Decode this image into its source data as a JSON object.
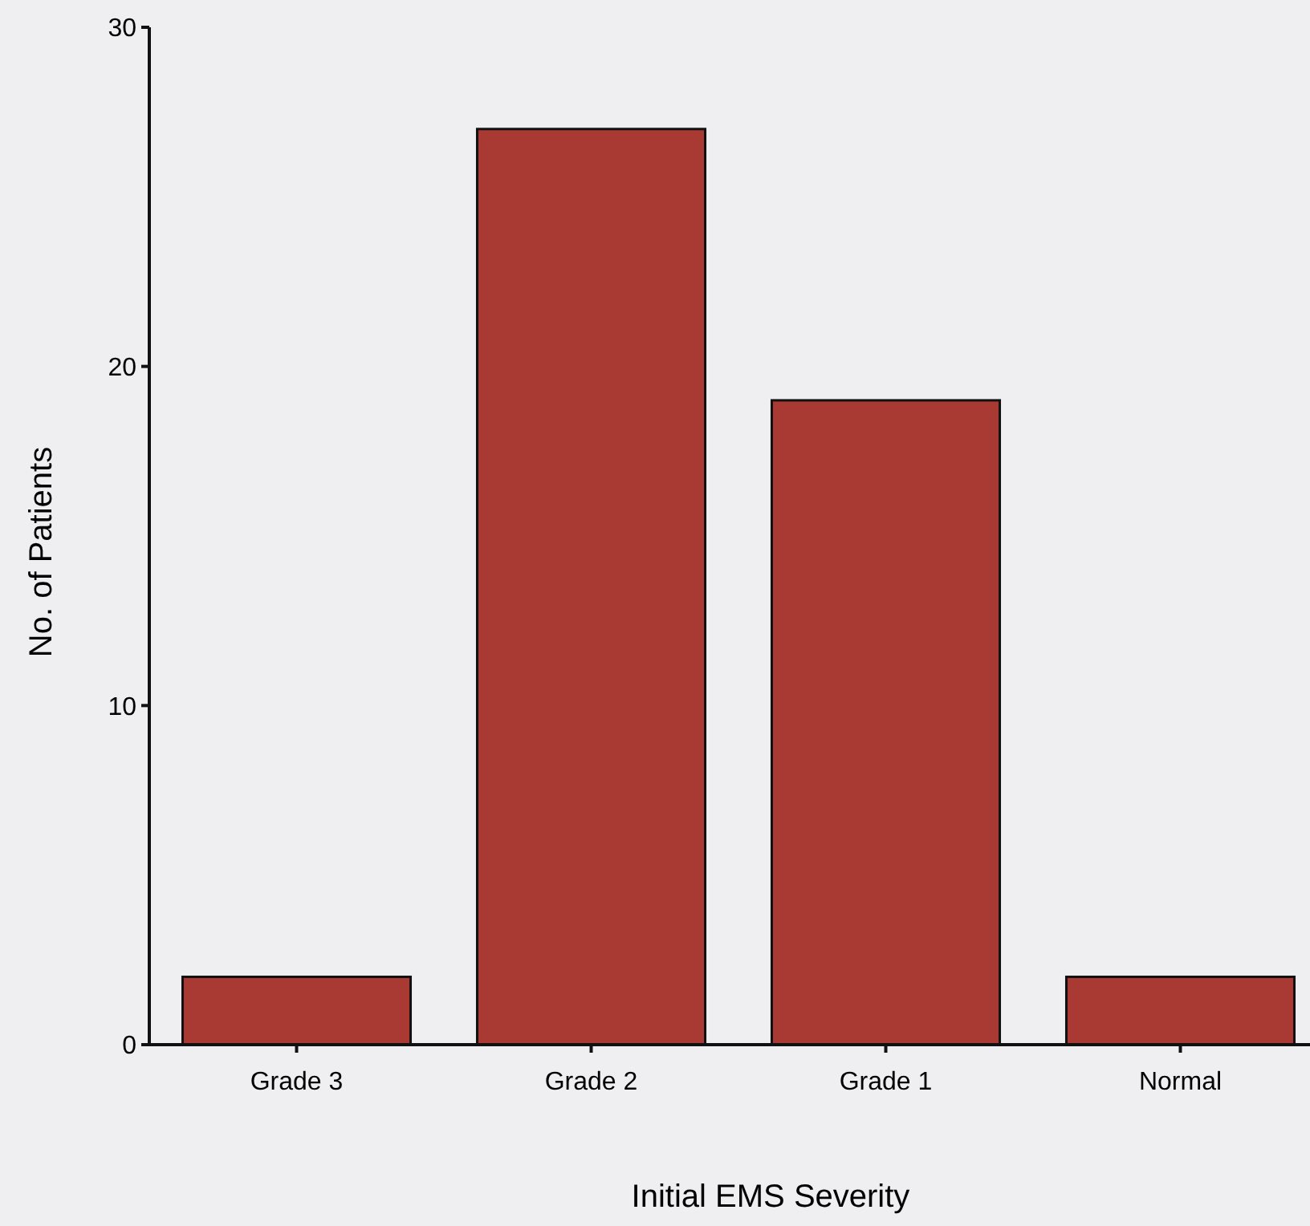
{
  "chart_data": {
    "type": "bar",
    "xlabel": "Initial EMS Severity",
    "ylabel": "No. of Patients",
    "categories": [
      "Grade 3",
      "Grade 2",
      "Grade 1",
      "Normal"
    ],
    "values": [
      2,
      27,
      19,
      2
    ],
    "color": "#a83a33",
    "ylim": [
      0,
      30
    ],
    "yticks": [
      0,
      10,
      20,
      30
    ],
    "grid": false
  }
}
